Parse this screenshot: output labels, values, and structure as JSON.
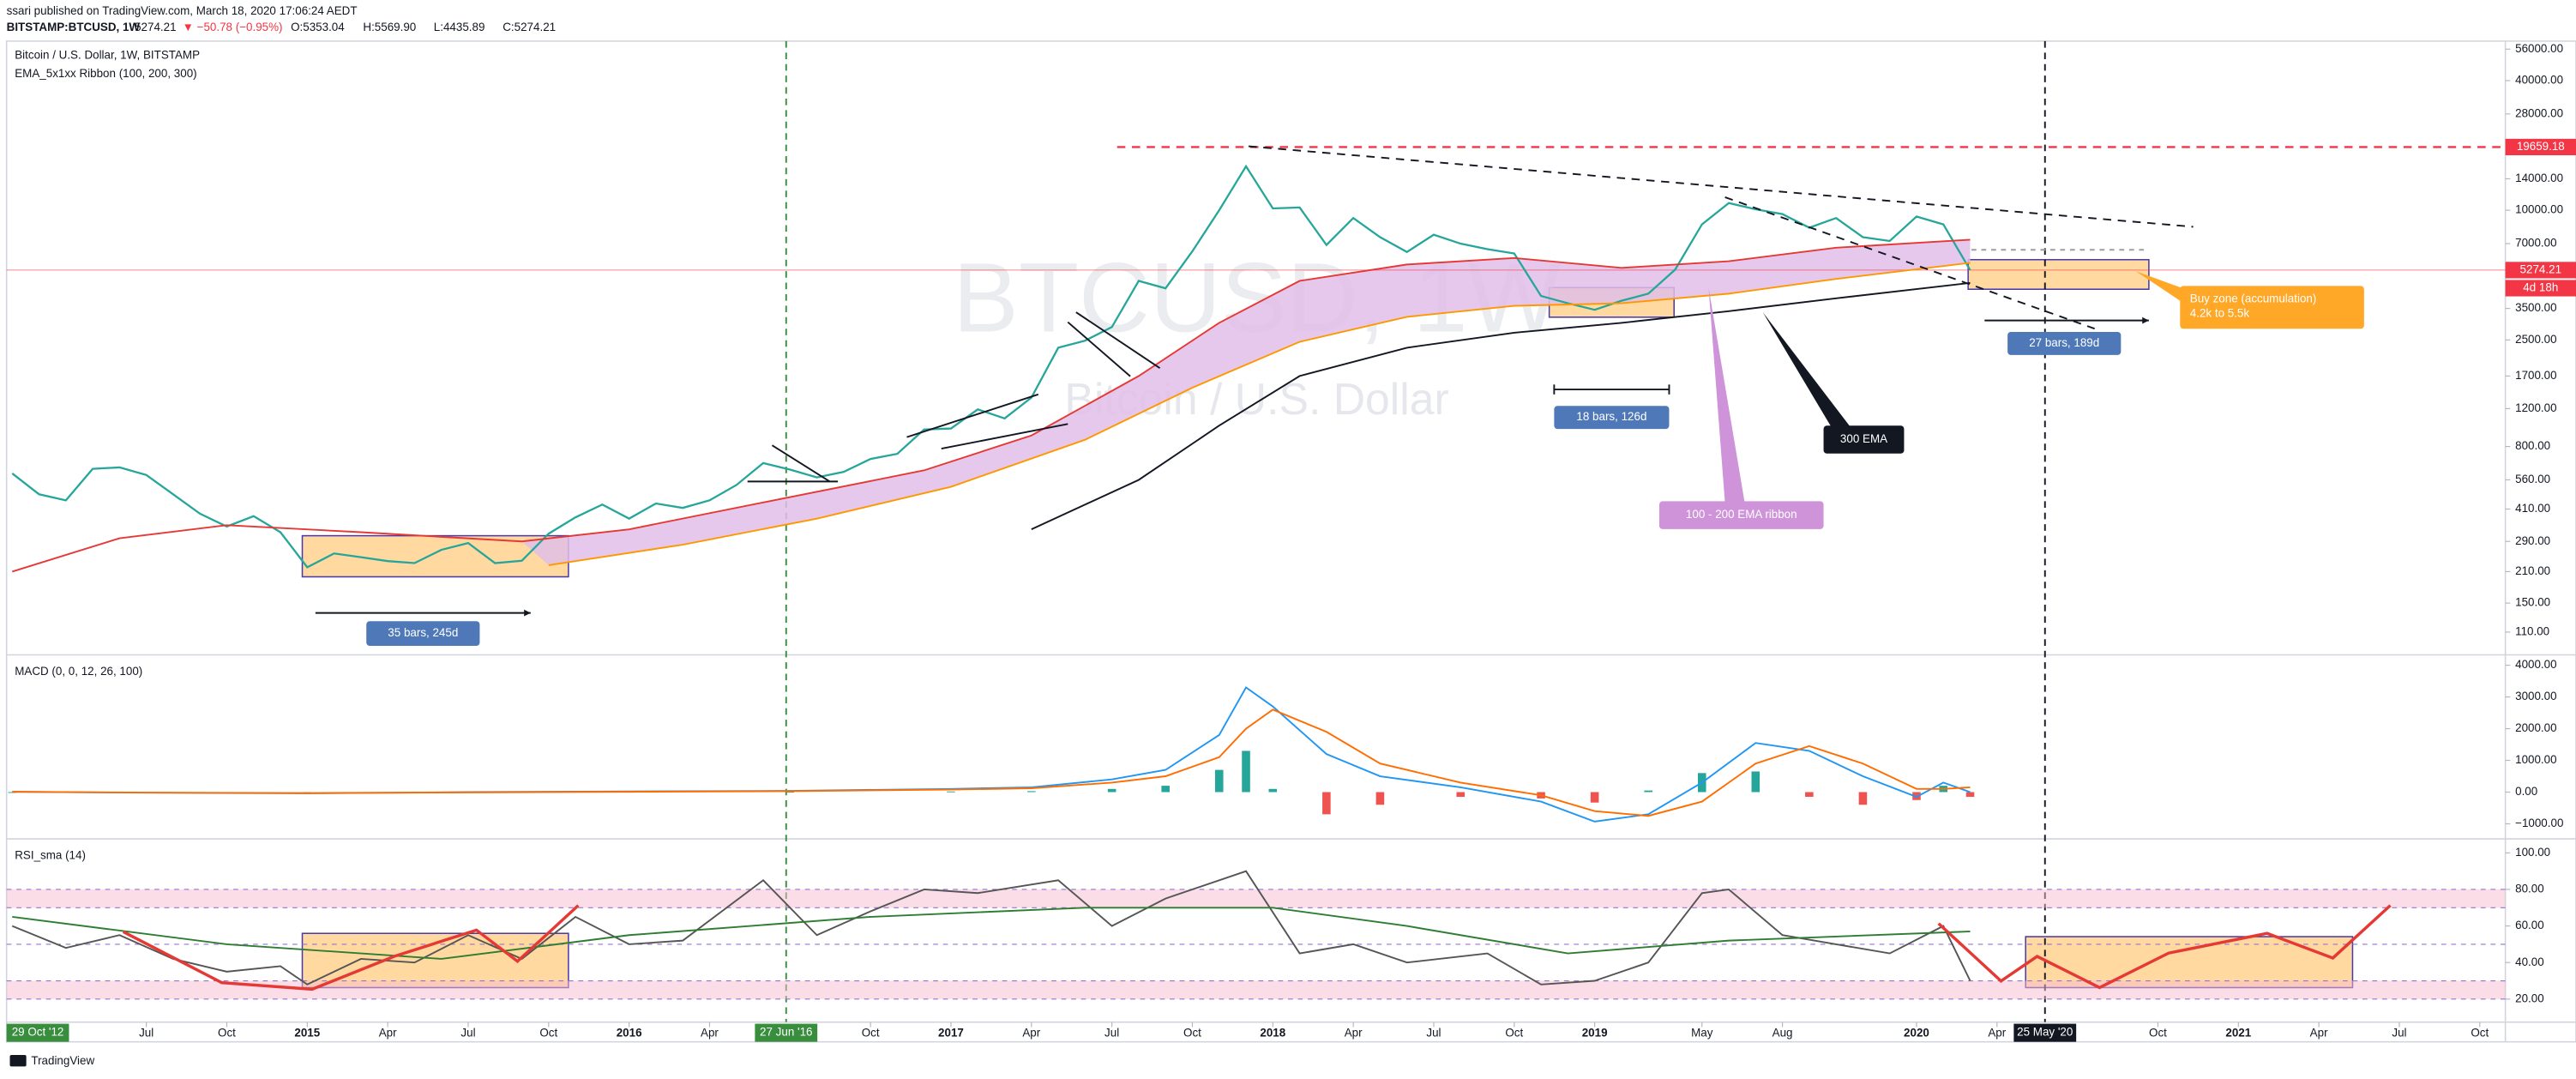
{
  "header": {
    "publisher": "ssari published on TradingView.com, March 18, 2020 17:06:24 AEDT",
    "symbol": "BITSTAMP:BTCUSD, 1W",
    "price": "5274.21",
    "change": "▼ −50.78 (−0.95%)",
    "ohlc": [
      "O:5353.04",
      "H:5569.90",
      "L:4435.89",
      "C:5274.21"
    ]
  },
  "footer": {
    "brand": "TradingView"
  },
  "annotations": [
    "35 bars, 245d",
    "18 bars, 126d",
    "27 bars, 189d",
    "300 EMA",
    "100 - 200 EMA ribbon",
    "Buy zone (accumulation)",
    "4.2k to 5.5k"
  ],
  "time_axis": {
    "xlim": [
      "2014-01-25",
      "2021-10-30"
    ],
    "start_label": "29 Oct '12",
    "start_color": "#388e3c",
    "xticks": [
      {
        "value": "2014-07",
        "label": "Jul"
      },
      {
        "value": "2014-10",
        "label": "Oct"
      },
      {
        "value": "2015-01",
        "label": "2015"
      },
      {
        "value": "2015-04",
        "label": "Apr"
      },
      {
        "value": "2015-07",
        "label": "Jul"
      },
      {
        "value": "2015-10",
        "label": "Oct"
      },
      {
        "value": "2016-01",
        "label": "2016"
      },
      {
        "value": "2016-04",
        "label": "Apr"
      },
      {
        "value": "2016-10",
        "label": "Oct"
      },
      {
        "value": "2017-01",
        "label": "2017"
      },
      {
        "value": "2017-04",
        "label": "Apr"
      },
      {
        "value": "2017-07",
        "label": "Jul"
      },
      {
        "value": "2017-10",
        "label": "Oct"
      },
      {
        "value": "2018-01",
        "label": "2018"
      },
      {
        "value": "2018-04",
        "label": "Apr"
      },
      {
        "value": "2018-07",
        "label": "Jul"
      },
      {
        "value": "2018-10",
        "label": "Oct"
      },
      {
        "value": "2019-01",
        "label": "2019"
      },
      {
        "value": "2019-05",
        "label": "May"
      },
      {
        "value": "2019-08",
        "label": "Aug"
      },
      {
        "value": "2020-01",
        "label": "2020"
      },
      {
        "value": "2020-04",
        "label": "Apr"
      },
      {
        "value": "2020-10",
        "label": "Oct"
      },
      {
        "value": "2021-01",
        "label": "2021"
      },
      {
        "value": "2021-04",
        "label": "Apr"
      },
      {
        "value": "2021-07",
        "label": "Jul"
      },
      {
        "value": "2021-10",
        "label": "Oct"
      }
    ],
    "markers": [
      {
        "value": "2016-06-27",
        "label": "27 Jun '16",
        "color": "#388e3c"
      },
      {
        "value": "2020-05-25",
        "label": "25 May '20",
        "color": "#131722"
      }
    ]
  },
  "chart_data": [
    {
      "type": "line",
      "title": "Bitcoin / U.S. Dollar, 1W, BITSTAMP",
      "subtitle": "EMA_5x1xx Ribbon (100, 200, 300)",
      "watermark": "BTCUSD, 1W",
      "watermark_subtitle": "Bitcoin / U.S. Dollar",
      "log_scale": true,
      "ylim": [
        87,
        61000
      ],
      "yticks": [
        {
          "value": 56000,
          "label": "56000.00"
        },
        {
          "value": 40000,
          "label": "40000.00"
        },
        {
          "value": 28000,
          "label": "28000.00"
        },
        {
          "value": 14000,
          "label": "14000.00"
        },
        {
          "value": 10000,
          "label": "10000.00"
        },
        {
          "value": 7000,
          "label": "7000.00"
        },
        {
          "value": 3500,
          "label": "3500.00"
        },
        {
          "value": 2500,
          "label": "2500.00"
        },
        {
          "value": 1700,
          "label": "1700.00"
        },
        {
          "value": 1200,
          "label": "1200.00"
        },
        {
          "value": 800,
          "label": "800.00"
        },
        {
          "value": 560,
          "label": "560.00"
        },
        {
          "value": 410,
          "label": "410.00"
        },
        {
          "value": 290,
          "label": "290.00"
        },
        {
          "value": 210,
          "label": "210.00"
        },
        {
          "value": 150,
          "label": "150.00"
        },
        {
          "value": 110,
          "label": "110.00"
        }
      ],
      "levels": [
        {
          "value": 19659.18,
          "color": "#f23645"
        }
      ],
      "last_price": 5274.21,
      "last_color": "#f23645",
      "countdown": "4d 18h",
      "ribbon_color": "#e1bee7",
      "series": [
        {
          "color": "#26a69a",
          "x": [
            "2014-02",
            "2014-03",
            "2014-04",
            "2014-05",
            "2014-06",
            "2014-07",
            "2014-08",
            "2014-09",
            "2014-10",
            "2014-11",
            "2014-12",
            "2015-01",
            "2015-02",
            "2015-03",
            "2015-04",
            "2015-05",
            "2015-06",
            "2015-07",
            "2015-08",
            "2015-09",
            "2015-10",
            "2015-11",
            "2015-12",
            "2016-01",
            "2016-02",
            "2016-03",
            "2016-04",
            "2016-05",
            "2016-06",
            "2016-07",
            "2016-08",
            "2016-09",
            "2016-10",
            "2016-11",
            "2016-12",
            "2017-01",
            "2017-02",
            "2017-03",
            "2017-04",
            "2017-05",
            "2017-06",
            "2017-07",
            "2017-08",
            "2017-09",
            "2017-10",
            "2017-11",
            "2017-12",
            "2018-01",
            "2018-02",
            "2018-03",
            "2018-04",
            "2018-05",
            "2018-06",
            "2018-07",
            "2018-08",
            "2018-09",
            "2018-10",
            "2018-11",
            "2018-12",
            "2019-01",
            "2019-02",
            "2019-03",
            "2019-04",
            "2019-05",
            "2019-06",
            "2019-07",
            "2019-08",
            "2019-09",
            "2019-10",
            "2019-11",
            "2019-12",
            "2020-01",
            "2020-02",
            "2020-03"
          ],
          "values": [
            600,
            480,
            450,
            630,
            640,
            590,
            480,
            390,
            340,
            380,
            320,
            220,
            255,
            245,
            235,
            230,
            265,
            285,
            230,
            236,
            315,
            375,
            430,
            370,
            435,
            415,
            450,
            530,
            670,
            625,
            575,
            610,
            700,
            740,
            960,
            970,
            1190,
            1080,
            1350,
            2300,
            2480,
            2870,
            4700,
            4340,
            6450,
            10000,
            16000,
            10200,
            10300,
            6900,
            9200,
            7500,
            6400,
            7700,
            7000,
            6600,
            6300,
            4000,
            3700,
            3450,
            3800,
            4100,
            5300,
            8600,
            10800,
            10100,
            9600,
            8300,
            9200,
            7500,
            7200,
            9350,
            8600,
            5274.21
          ]
        },
        {
          "color": "#e53935",
          "x": [
            "2014-02",
            "2014-06",
            "2014-10",
            "2015-03",
            "2015-09",
            "2016-01",
            "2016-06",
            "2016-12",
            "2017-04",
            "2017-08",
            "2017-11",
            "2018-02",
            "2018-06",
            "2018-10",
            "2019-02",
            "2019-06",
            "2019-10",
            "2020-03"
          ],
          "values": [
            210,
            300,
            345,
            320,
            290,
            330,
            440,
            620,
            900,
            1700,
            3000,
            4700,
            5600,
            6000,
            5400,
            5800,
            6700,
            7300
          ]
        },
        {
          "color": "#ff9800",
          "x": [
            "2015-10",
            "2016-03",
            "2016-08",
            "2017-01",
            "2017-06",
            "2017-10",
            "2018-02",
            "2018-06",
            "2018-10",
            "2019-02",
            "2019-06",
            "2019-10",
            "2020-03"
          ],
          "values": [
            225,
            280,
            370,
            520,
            860,
            1500,
            2450,
            3200,
            3600,
            3700,
            4100,
            4800,
            5700
          ]
        },
        {
          "color": "#131722",
          "x": [
            "2017-04",
            "2017-08",
            "2017-11",
            "2018-02",
            "2018-06",
            "2018-10",
            "2019-02",
            "2019-06",
            "2019-10",
            "2020-03"
          ],
          "values": [
            330,
            560,
            1000,
            1700,
            2300,
            2700,
            3000,
            3400,
            3900,
            4600
          ]
        }
      ]
    },
    {
      "type": "macd",
      "title": "MACD (0, 0, 12, 26, 100)",
      "ylim": [
        -1450,
        4250
      ],
      "yticks": [
        {
          "value": 4000,
          "label": "4000.00"
        },
        {
          "value": 3000,
          "label": "3000.00"
        },
        {
          "value": 2000,
          "label": "2000.00"
        },
        {
          "value": 1000,
          "label": "1000.00"
        },
        {
          "value": 0,
          "label": "0.00"
        },
        {
          "value": -1000,
          "label": "−1000.00"
        }
      ],
      "x": [
        "2014-02",
        "2014-07",
        "2015-01",
        "2015-07",
        "2016-01",
        "2016-07",
        "2017-01",
        "2017-04",
        "2017-07",
        "2017-09",
        "2017-11",
        "2017-12",
        "2018-01",
        "2018-03",
        "2018-05",
        "2018-08",
        "2018-11",
        "2019-01",
        "2019-03",
        "2019-05",
        "2019-07",
        "2019-09",
        "2019-11",
        "2020-01",
        "2020-02",
        "2020-03"
      ],
      "histogram": {
        "color_up": "#26a69a",
        "color_down": "#ef5350",
        "values": [
          0,
          -5,
          -10,
          10,
          10,
          10,
          20,
          30,
          100,
          200,
          700,
          1300,
          100,
          -700,
          -400,
          -150,
          -200,
          -330,
          50,
          600,
          650,
          -150,
          -400,
          -250,
          200,
          -150
        ]
      },
      "series": [
        {
          "color": "#2196f3",
          "values": [
            10,
            -20,
            -40,
            0,
            20,
            40,
            100,
            150,
            400,
            700,
            1800,
            3300,
            2700,
            1200,
            500,
            150,
            -300,
            -930,
            -700,
            300,
            1550,
            1300,
            500,
            -150,
            300,
            0
          ]
        },
        {
          "color": "#ff6d00",
          "values": [
            10,
            -15,
            -30,
            -10,
            10,
            30,
            80,
            120,
            300,
            500,
            1100,
            2000,
            2600,
            1900,
            900,
            300,
            -100,
            -600,
            -750,
            -300,
            900,
            1450,
            900,
            100,
            100,
            150
          ]
        }
      ]
    },
    {
      "type": "line",
      "title": "RSI_sma (14)",
      "ylim": [
        7.4,
        106.3
      ],
      "yticks": [
        {
          "value": 100,
          "label": "100.00"
        },
        {
          "value": 80,
          "label": "80.00"
        },
        {
          "value": 60,
          "label": "60.00"
        },
        {
          "value": 40,
          "label": "40.00"
        },
        {
          "value": 20,
          "label": "20.00"
        }
      ],
      "levels": [
        80,
        70,
        50,
        30,
        20
      ],
      "bands": [
        [
          70,
          80
        ],
        [
          20,
          30
        ]
      ],
      "band_color": "#f8bbd0",
      "series": [
        {
          "color": "#555555",
          "x": [
            "2014-02",
            "2014-04",
            "2014-06",
            "2014-08",
            "2014-10",
            "2014-12",
            "2015-01",
            "2015-03",
            "2015-05",
            "2015-07",
            "2015-09",
            "2015-11",
            "2016-01",
            "2016-03",
            "2016-06",
            "2016-08",
            "2016-10",
            "2016-12",
            "2017-02",
            "2017-05",
            "2017-07",
            "2017-09",
            "2017-12",
            "2018-02",
            "2018-04",
            "2018-06",
            "2018-09",
            "2018-11",
            "2019-01",
            "2019-03",
            "2019-05",
            "2019-06",
            "2019-08",
            "2019-10",
            "2019-12",
            "2020-02",
            "2020-03"
          ],
          "values": [
            60,
            48,
            55,
            42,
            35,
            38,
            28,
            42,
            40,
            55,
            42,
            65,
            50,
            52,
            85,
            55,
            68,
            80,
            78,
            85,
            60,
            75,
            90,
            45,
            50,
            40,
            45,
            28,
            30,
            40,
            78,
            80,
            55,
            50,
            45,
            60,
            30
          ]
        },
        {
          "color": "#2e7d32",
          "x": [
            "2014-02",
            "2014-10",
            "2015-06",
            "2016-01",
            "2016-10",
            "2017-06",
            "2018-01",
            "2018-06",
            "2018-12",
            "2019-06",
            "2020-03"
          ],
          "values": [
            65,
            50,
            42,
            55,
            65,
            70,
            70,
            60,
            45,
            52,
            57
          ]
        }
      ]
    }
  ]
}
